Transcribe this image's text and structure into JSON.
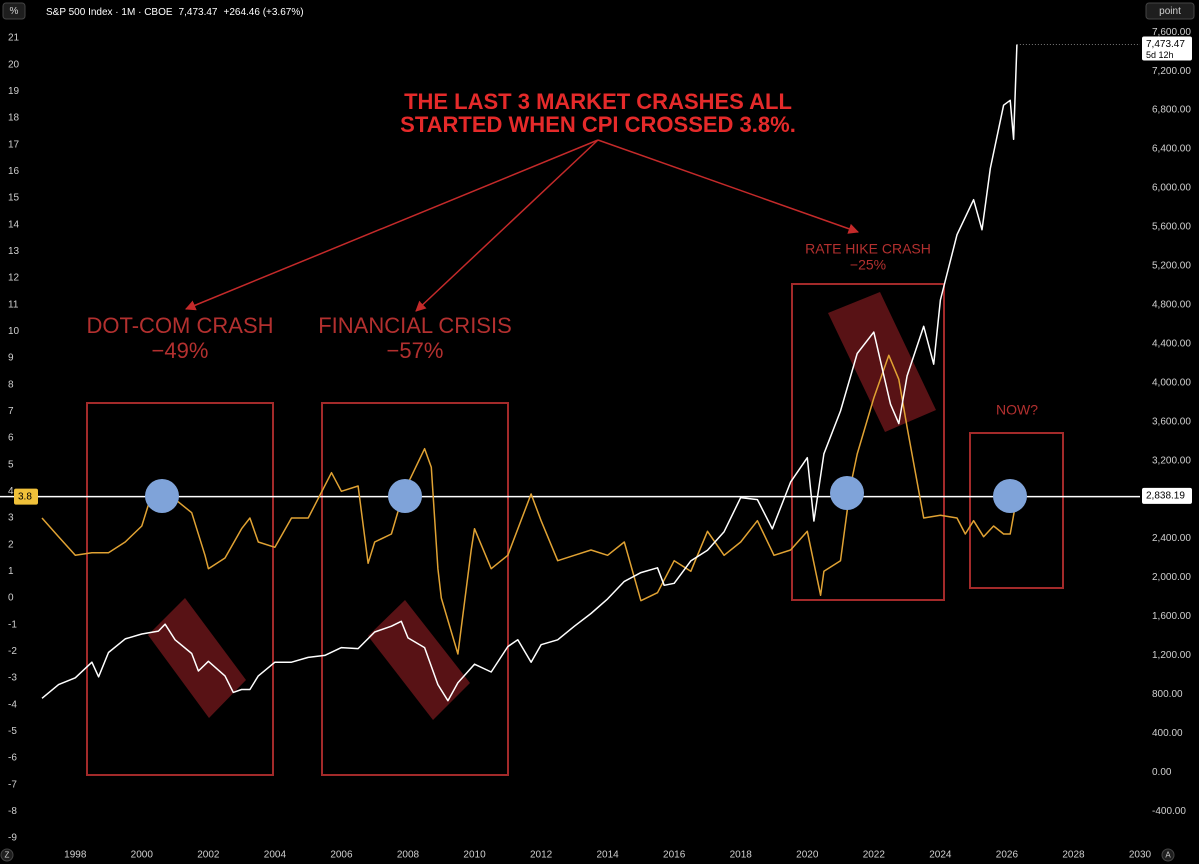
{
  "chart_data": {
    "type": "line",
    "header": {
      "symbol": "S&P 500 Index · 1M · CBOE",
      "price": "7,473.47",
      "change": "+264.46 (+3.67%)"
    },
    "scale_buttons": {
      "left": "%",
      "right": "point",
      "bottom_left": "Z",
      "bottom_right": "A"
    },
    "annotations": {
      "headline": [
        "THE LAST 3 MARKET CRASHES ALL",
        "STARTED WHEN CPI CROSSED 3.8%."
      ],
      "dotcom": [
        "DOT-COM CRASH",
        "−49%"
      ],
      "financial": [
        "FINANCIAL CRISIS",
        "−57%"
      ],
      "ratehike": [
        "RATE HIKE CRASH",
        "−25%"
      ],
      "now": "NOW?"
    },
    "xlim": [
      1996.88,
      2030
    ],
    "xticks": [
      1998,
      2000,
      2002,
      2004,
      2006,
      2008,
      2010,
      2012,
      2014,
      2016,
      2018,
      2020,
      2022,
      2024,
      2026,
      2028,
      2030
    ],
    "ylim": [
      -9,
      21
    ],
    "yticks": [
      -9,
      -8,
      -7,
      -6,
      -5,
      -4,
      -3,
      -2,
      -1,
      0,
      1,
      2,
      3,
      4,
      5,
      6,
      7,
      8,
      9,
      10,
      11,
      12,
      13,
      14,
      15,
      16,
      17,
      18,
      19,
      20,
      21
    ],
    "y2lim": [
      -675,
      7540
    ],
    "y2ticks": [
      {
        "value": -400,
        "label": "-400.00"
      },
      {
        "value": 0,
        "label": "0.00"
      },
      {
        "value": 400,
        "label": "400.00"
      },
      {
        "value": 800,
        "label": "800.00"
      },
      {
        "value": 1200,
        "label": "1,200.00"
      },
      {
        "value": 1600,
        "label": "1,600.00"
      },
      {
        "value": 2000,
        "label": "2,000.00"
      },
      {
        "value": 2400,
        "label": "2,400.00"
      },
      {
        "value": 3200,
        "label": "3,200.00"
      },
      {
        "value": 3600,
        "label": "3,600.00"
      },
      {
        "value": 4000,
        "label": "4,000.00"
      },
      {
        "value": 4400,
        "label": "4,400.00"
      },
      {
        "value": 4800,
        "label": "4,800.00"
      },
      {
        "value": 5200,
        "label": "5,200.00"
      },
      {
        "value": 5600,
        "label": "5,600.00"
      },
      {
        "value": 6000,
        "label": "6,000.00"
      },
      {
        "value": 6400,
        "label": "6,400.00"
      },
      {
        "value": 6800,
        "label": "6,800.00"
      },
      {
        "value": 7200,
        "label": "7,200.00"
      },
      {
        "value": 7600,
        "label": "7,600.00"
      }
    ],
    "grid": false,
    "reference_line": {
      "y": 3.8,
      "y2": {
        "value": 2838.19,
        "label": "2,838.19"
      },
      "color": "#ffffff"
    },
    "last_price": {
      "value": 7473.47,
      "label": "7,473.47",
      "countdown": "5d 12h"
    },
    "series": [
      {
        "color": "#ffffff",
        "axis": "y2",
        "x": [
          1997.0,
          1997.5,
          1998.0,
          1998.5,
          1998.7,
          1999.0,
          1999.5,
          2000.0,
          2000.5,
          2000.7,
          2001.0,
          2001.5,
          2001.7,
          2002.0,
          2002.5,
          2002.75,
          2003.0,
          2003.25,
          2003.5,
          2004.0,
          2004.5,
          2005.0,
          2005.5,
          2006.0,
          2006.5,
          2007.0,
          2007.5,
          2007.8,
          2008.0,
          2008.5,
          2008.9,
          2009.2,
          2009.5,
          2010.0,
          2010.5,
          2011.0,
          2011.3,
          2011.7,
          2012.0,
          2012.5,
          2013.0,
          2013.5,
          2014.0,
          2014.5,
          2015.0,
          2015.5,
          2015.7,
          2016.0,
          2016.5,
          2017.0,
          2017.5,
          2018.0,
          2018.5,
          2018.95,
          2019.5,
          2020.0,
          2020.2,
          2020.5,
          2021.0,
          2021.5,
          2022.0,
          2022.5,
          2022.75,
          2023.0,
          2023.5,
          2023.8,
          2024.0,
          2024.5,
          2025.0,
          2025.25,
          2025.5,
          2025.9,
          2026.1,
          2026.2,
          2026.3
        ],
        "values": [
          760,
          900,
          970,
          1130,
          980,
          1230,
          1370,
          1420,
          1450,
          1520,
          1360,
          1220,
          1040,
          1140,
          990,
          820,
          850,
          850,
          990,
          1130,
          1130,
          1180,
          1200,
          1280,
          1270,
          1440,
          1500,
          1550,
          1380,
          1280,
          900,
          735,
          920,
          1110,
          1030,
          1290,
          1360,
          1130,
          1310,
          1360,
          1500,
          1630,
          1780,
          1960,
          2050,
          2100,
          1920,
          1940,
          2170,
          2280,
          2470,
          2820,
          2800,
          2500,
          2980,
          3230,
          2580,
          3270,
          3710,
          4300,
          4520,
          3780,
          3580,
          4070,
          4580,
          4190,
          4850,
          5520,
          5880,
          5570,
          6200,
          6850,
          6900,
          6500,
          7473.47
        ]
      },
      {
        "color": "#e0a233",
        "axis": "y",
        "x": [
          1997.0,
          1997.5,
          1998.0,
          1998.5,
          1999.0,
          1999.5,
          2000.0,
          2000.25,
          2000.5,
          2001.0,
          2001.5,
          2001.9,
          2002.0,
          2002.5,
          2003.0,
          2003.25,
          2003.5,
          2004.0,
          2004.5,
          2005.0,
          2005.7,
          2006.0,
          2006.5,
          2006.8,
          2007.0,
          2007.5,
          2007.9,
          2008.0,
          2008.5,
          2008.7,
          2008.9,
          2009.0,
          2009.5,
          2009.9,
          2010.0,
          2010.5,
          2011.0,
          2011.7,
          2012.0,
          2012.5,
          2013.0,
          2013.5,
          2014.0,
          2014.5,
          2015.0,
          2015.5,
          2016.0,
          2016.5,
          2017.0,
          2017.5,
          2018.0,
          2018.5,
          2019.0,
          2019.5,
          2020.0,
          2020.4,
          2020.5,
          2021.0,
          2021.3,
          2021.5,
          2022.0,
          2022.45,
          2022.75,
          2023.0,
          2023.5,
          2024.0,
          2024.5,
          2024.75,
          2025.0,
          2025.3,
          2025.6,
          2025.9,
          2026.1,
          2026.3
        ],
        "values": [
          3.0,
          2.3,
          1.6,
          1.7,
          1.7,
          2.1,
          2.7,
          3.7,
          3.5,
          3.7,
          3.2,
          1.6,
          1.1,
          1.5,
          2.6,
          3.0,
          2.1,
          1.9,
          3.0,
          3.0,
          4.7,
          4.0,
          4.2,
          1.3,
          2.1,
          2.4,
          4.1,
          4.3,
          5.6,
          4.9,
          1.1,
          0.0,
          -2.1,
          1.8,
          2.6,
          1.1,
          1.6,
          3.9,
          2.9,
          1.4,
          1.6,
          1.8,
          1.6,
          2.1,
          -0.1,
          0.2,
          1.4,
          1.0,
          2.5,
          1.6,
          2.1,
          2.9,
          1.6,
          1.8,
          2.5,
          0.1,
          1.0,
          1.4,
          4.2,
          5.4,
          7.5,
          9.1,
          8.2,
          6.4,
          3.0,
          3.1,
          3.0,
          2.4,
          2.9,
          2.3,
          2.7,
          2.4,
          2.4,
          3.8
        ]
      }
    ]
  }
}
